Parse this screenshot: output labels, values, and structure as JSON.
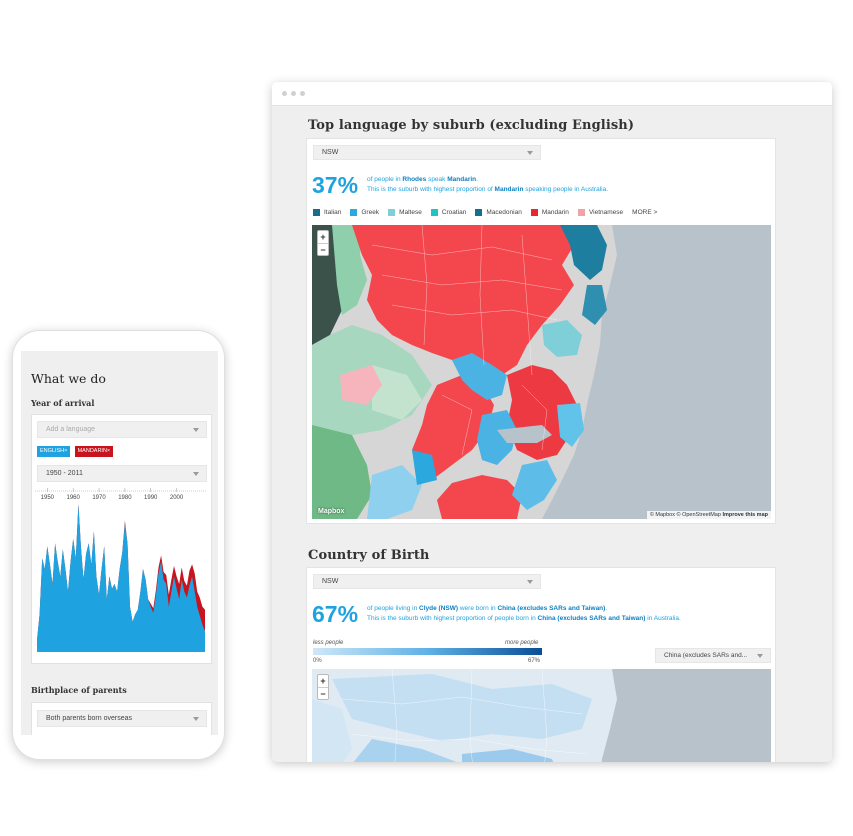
{
  "desktop": {
    "section1": {
      "title": "Top language by suburb (excluding English)",
      "region_select": "NSW",
      "percent": "37%",
      "line1_pre": "of people in ",
      "line1_suburb": "Rhodes",
      "line1_mid": " speak ",
      "line1_lang": "Mandarin",
      "line1_end": ".",
      "line2_pre": "This is the suburb with highest proportion of ",
      "line2_lang": "Mandarin",
      "line2_end": " speaking people in Australia.",
      "legend": [
        {
          "label": "Italian",
          "color": "#1a6c8c"
        },
        {
          "label": "Greek",
          "color": "#2ba8de"
        },
        {
          "label": "Maltese",
          "color": "#7fcfd8"
        },
        {
          "label": "Croatian",
          "color": "#21c4c4"
        },
        {
          "label": "Macedonian",
          "color": "#136f8e"
        },
        {
          "label": "Mandarin",
          "color": "#e8262e"
        },
        {
          "label": "Vietnamese",
          "color": "#f2a1a8"
        }
      ],
      "legend_more": "MORE >",
      "map": {
        "logo": "Mapbox",
        "attribution": "© Mapbox © OpenStreetMap",
        "improve": "Improve this map"
      }
    },
    "section2": {
      "title": "Country of Birth",
      "region_select": "NSW",
      "percent": "67%",
      "line1_pre": "of people living in ",
      "line1_suburb": "Clyde (NSW)",
      "line1_mid": " were born in ",
      "line1_country": "China (excludes SARs and Taiwan)",
      "line1_end": ".",
      "line2_pre": "This is the suburb with highest proportion of people born in ",
      "line2_country": "China (excludes SARs and Taiwan)",
      "line2_end": " in Australia.",
      "scale_less": "less people",
      "scale_more": "more people",
      "scale_min": "0%",
      "scale_max": "67%",
      "country_select": "China (excludes SARs and..."
    },
    "zoom_in": "+",
    "zoom_out": "−"
  },
  "mobile": {
    "title": "What we do",
    "year_heading": "Year of arrival",
    "language_placeholder": "Add a language",
    "tags": [
      {
        "label": "ENGLISH×",
        "color": "#1fa3e0"
      },
      {
        "label": "MANDARIN×",
        "color": "#c8141e"
      }
    ],
    "year_select": "1950 - 2011",
    "parents_heading": "Birthplace of parents",
    "parents_select": "Both parents born overseas"
  },
  "chart_data": {
    "type": "area",
    "x_ticks": [
      "1950",
      "1960",
      "1970",
      "1980",
      "1990",
      "2000"
    ],
    "x": [
      1946,
      1947,
      1948,
      1949,
      1950,
      1951,
      1952,
      1953,
      1954,
      1955,
      1956,
      1957,
      1958,
      1959,
      1960,
      1961,
      1962,
      1963,
      1964,
      1965,
      1966,
      1967,
      1968,
      1969,
      1970,
      1971,
      1972,
      1973,
      1974,
      1975,
      1976,
      1977,
      1978,
      1979,
      1980,
      1981,
      1982,
      1983,
      1984,
      1985,
      1986,
      1987,
      1988,
      1989,
      1990,
      1991,
      1992,
      1993,
      1994,
      1995,
      1996,
      1997,
      1998,
      1999,
      2000,
      2001,
      2002,
      2003,
      2004,
      2005,
      2006,
      2007,
      2008,
      2009,
      2010,
      2011
    ],
    "series": [
      {
        "name": "ENGLISH",
        "color": "#1fa3e0",
        "values": [
          8,
          25,
          62,
          55,
          70,
          58,
          45,
          72,
          60,
          50,
          68,
          55,
          40,
          60,
          75,
          62,
          98,
          70,
          48,
          65,
          72,
          58,
          80,
          50,
          38,
          55,
          70,
          35,
          50,
          42,
          45,
          40,
          55,
          66,
          85,
          72,
          30,
          20,
          25,
          28,
          40,
          55,
          48,
          35,
          30,
          26,
          38,
          52,
          60,
          48,
          45,
          30,
          40,
          50,
          42,
          35,
          48,
          40,
          36,
          44,
          50,
          40,
          30,
          24,
          18,
          14
        ]
      },
      {
        "name": "MANDARIN",
        "color": "#c8141e",
        "values": [
          0,
          0,
          0,
          0,
          0,
          0,
          0,
          0,
          0,
          0,
          0,
          0,
          0,
          0,
          0,
          0,
          0,
          0,
          0,
          0,
          0,
          0,
          0,
          0,
          0,
          0,
          0,
          0,
          0,
          0,
          0,
          0,
          0,
          0,
          2,
          0,
          0,
          0,
          0,
          0,
          0,
          0,
          0,
          0,
          2,
          3,
          3,
          4,
          4,
          5,
          6,
          8,
          8,
          7,
          8,
          10,
          8,
          7,
          8,
          10,
          8,
          12,
          10,
          12,
          12,
          14
        ]
      }
    ],
    "ylim": [
      0,
      100
    ]
  }
}
